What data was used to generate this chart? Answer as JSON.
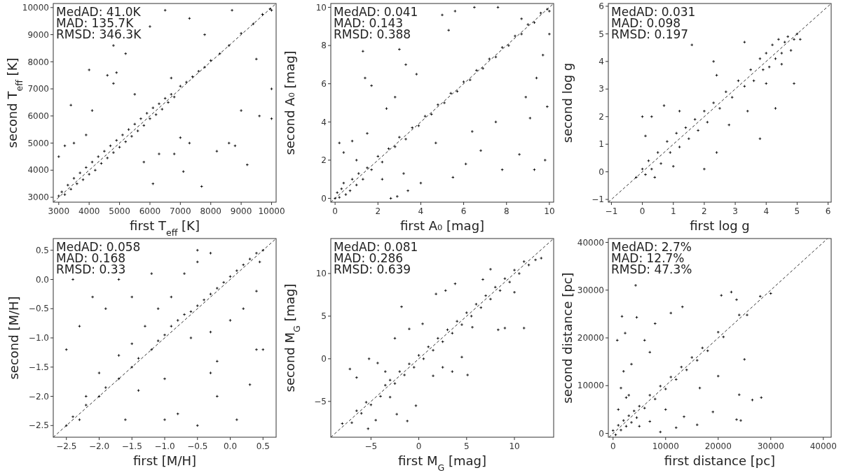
{
  "chart_data": [
    {
      "type": "scatter",
      "xlabel": "first T$_{eff}$ [K]",
      "ylabel": "second T$_{eff}$ [K]",
      "annotations": [
        "MedAD: 41.0K",
        "MAD: 135.7K",
        "RMSD: 346.3K"
      ],
      "xlim": [
        2820,
        10150
      ],
      "ylim": [
        2820,
        10150
      ],
      "xticks": [
        3000,
        4000,
        5000,
        6000,
        7000,
        8000,
        9000,
        10000
      ],
      "yticks": [
        3000,
        4000,
        5000,
        6000,
        7000,
        8000,
        9000,
        10000
      ],
      "series": [
        {
          "type": "scatter",
          "color": "#000000",
          "marker": "cross",
          "x": [
            3000,
            3100,
            3200,
            3300,
            3400,
            3500,
            3600,
            3700,
            3800,
            3900,
            4000,
            4100,
            4200,
            4300,
            4400,
            4500,
            4600,
            4700,
            4800,
            4900,
            5000,
            5100,
            5200,
            5300,
            5400,
            5500,
            5600,
            5700,
            5800,
            5900,
            6000,
            6100,
            6200,
            6300,
            6400,
            6500,
            6600,
            6700,
            6800,
            7000,
            7200,
            7400,
            7600,
            7800,
            8000,
            8300,
            8600,
            9000,
            9400,
            9700,
            9950,
            10000,
            4600,
            4800,
            4900,
            3400,
            4100,
            5200,
            4800,
            4000,
            6000,
            6500,
            7300,
            8700,
            7000,
            7300,
            6800,
            6100,
            7700,
            7100,
            9200,
            8800,
            9000,
            9600,
            10000,
            10000,
            9500,
            8200,
            8600,
            5800,
            6300,
            3900,
            3500,
            3000,
            3200,
            5500,
            6700,
            7800
          ],
          "values": [
            3050,
            3200,
            3100,
            3450,
            3300,
            3700,
            3500,
            3900,
            3650,
            4100,
            3850,
            4300,
            4000,
            4500,
            4250,
            4700,
            4450,
            4900,
            4650,
            5100,
            4850,
            5300,
            5050,
            5500,
            5250,
            5700,
            5450,
            5900,
            5650,
            6100,
            5900,
            6300,
            6050,
            6450,
            6250,
            6650,
            6500,
            6800,
            6700,
            7100,
            7250,
            7450,
            7650,
            7800,
            8050,
            8300,
            8600,
            9050,
            9400,
            9750,
            9950,
            9900,
            7500,
            7200,
            7600,
            6400,
            6200,
            8300,
            8600,
            7700,
            9300,
            9900,
            9600,
            9900,
            5200,
            5000,
            4600,
            3500,
            3400,
            3950,
            4200,
            4900,
            6200,
            6000,
            5900,
            7000,
            8100,
            4700,
            5000,
            4300,
            4600,
            5300,
            5000,
            4500,
            4900,
            6800,
            7400,
            9000
          ]
        },
        {
          "type": "line",
          "color": "#000000",
          "line_style": "dashed",
          "x": [
            2820,
            10150
          ],
          "values": [
            2820,
            10150
          ]
        }
      ]
    },
    {
      "type": "scatter",
      "xlabel": "first A₀ [mag]",
      "ylabel": "second A₀ [mag]",
      "annotations": [
        "MedAD: 0.041",
        "MAD: 0.143",
        "RMSD: 0.388"
      ],
      "xlim": [
        -0.2,
        10.2
      ],
      "ylim": [
        -0.2,
        10.2
      ],
      "xticks": [
        0,
        2,
        4,
        6,
        8,
        10
      ],
      "yticks": [
        0,
        2,
        4,
        6,
        8,
        10
      ],
      "series": [
        {
          "type": "scatter",
          "color": "#000000",
          "marker": "cross",
          "x": [
            0,
            0.1,
            0.2,
            0.3,
            0.5,
            0.4,
            0.7,
            0.8,
            1.0,
            1.1,
            1.3,
            1.5,
            1.7,
            2.0,
            2.2,
            2.5,
            2.8,
            3.0,
            3.3,
            3.6,
            3.9,
            4.2,
            4.5,
            4.8,
            5.1,
            5.4,
            5.7,
            6.0,
            6.3,
            6.6,
            6.9,
            7.2,
            7.5,
            7.8,
            8.1,
            8.4,
            8.7,
            9.0,
            9.3,
            9.6,
            9.9,
            10,
            0.2,
            0.4,
            0.8,
            1.3,
            1.4,
            1.7,
            1.5,
            2.4,
            3.0,
            3.3,
            3.8,
            2.8,
            5.0,
            5.6,
            6.5,
            5.3,
            3.4,
            2.6,
            2.9,
            4.0,
            5.5,
            6.1,
            6.8,
            7.8,
            8.6,
            9.3,
            9.8,
            9.9,
            9.4,
            9.1,
            8.9,
            7.5,
            6.4,
            4.7,
            9.7,
            10,
            7.6,
            8.7,
            2.2,
            3.2,
            1.0
          ],
          "values": [
            0,
            0.3,
            0.05,
            0.5,
            0.2,
            0.8,
            0.4,
            1.0,
            0.7,
            1.3,
            1.0,
            1.6,
            1.5,
            2.2,
            1.9,
            2.6,
            2.7,
            3.2,
            3.1,
            3.7,
            3.8,
            4.3,
            4.4,
            4.9,
            5.0,
            5.5,
            5.6,
            6.1,
            6.2,
            6.7,
            6.8,
            7.3,
            7.4,
            7.9,
            8.0,
            8.5,
            8.6,
            9.1,
            9.2,
            9.7,
            9.9,
            9.8,
            2.9,
            2.4,
            3.0,
            7.7,
            6.3,
            5.9,
            3.4,
            4.7,
            7.8,
            7.0,
            6.5,
            5.3,
            9.6,
            9.8,
            10,
            8.8,
            0.4,
            0.0,
            0.1,
            0.8,
            1.1,
            1.8,
            2.5,
            1.5,
            2.3,
            1.5,
            2.0,
            4.8,
            6.3,
            4.2,
            5.3,
            4.0,
            3.5,
            2.9,
            7.5,
            8.6,
            10,
            9.4,
            1.0,
            1.3,
            2.0
          ]
        },
        {
          "type": "line",
          "color": "#000000",
          "line_style": "dashed",
          "x": [
            -0.2,
            10.2
          ],
          "values": [
            -0.2,
            10.2
          ]
        }
      ]
    },
    {
      "type": "scatter",
      "xlabel": "first log g",
      "ylabel": "second log g",
      "annotations": [
        "MedAD: 0.031",
        "MAD: 0.098",
        "RMSD: 0.197"
      ],
      "xlim": [
        -1.1,
        6.1
      ],
      "ylim": [
        -1.1,
        6.1
      ],
      "xticks": [
        {
          "value": -1,
          "label": "−1"
        },
        0,
        1,
        2,
        3,
        4,
        5,
        6
      ],
      "yticks": [
        {
          "value": -1,
          "label": "−1"
        },
        0,
        1,
        2,
        3,
        4,
        5,
        6
      ],
      "series": [
        {
          "type": "scatter",
          "color": "#000000",
          "marker": "cross",
          "x": [
            -0.2,
            0,
            0.1,
            0.2,
            0.3,
            0.5,
            0.6,
            0.8,
            0.9,
            1.1,
            1.2,
            1.4,
            1.5,
            1.7,
            1.8,
            2.0,
            2.1,
            2.3,
            2.5,
            2.7,
            2.9,
            3.1,
            3.3,
            3.5,
            3.6,
            3.8,
            3.9,
            4.0,
            4.1,
            4.2,
            4.3,
            4.4,
            4.5,
            4.6,
            4.7,
            4.8,
            4.9,
            5.0,
            5.1,
            4.5,
            4.0,
            0,
            0.3,
            0.7,
            0.1,
            1.6,
            2.3,
            3.3,
            2.4,
            3.8,
            2.0,
            2.4,
            3.4,
            4.3,
            4.9,
            1.0,
            0.4,
            2.8,
            1.2
          ],
          "values": [
            -0.2,
            0.1,
            -0.1,
            0.4,
            0.1,
            0.7,
            0.3,
            1.1,
            0.7,
            1.4,
            0.9,
            1.6,
            1.2,
            1.9,
            1.5,
            2.2,
            1.8,
            2.5,
            2.3,
            2.9,
            2.7,
            3.3,
            3.1,
            3.7,
            3.3,
            4.1,
            3.7,
            4.3,
            3.8,
            4.6,
            4.1,
            4.8,
            4.3,
            4.7,
            4.9,
            4.4,
            4.8,
            5.0,
            4.8,
            3.9,
            3.2,
            2.0,
            2.0,
            2.4,
            1.3,
            4.6,
            4.0,
            4.7,
            3.5,
            1.2,
            0.1,
            0.7,
            2.2,
            2.3,
            3.2,
            0.2,
            -0.2,
            1.7,
            2.2
          ]
        },
        {
          "type": "line",
          "color": "#000000",
          "line_style": "dashed",
          "x": [
            -1.1,
            6.1
          ],
          "values": [
            -1.1,
            6.1
          ]
        }
      ]
    },
    {
      "type": "scatter",
      "xlabel": "first [M/H]",
      "ylabel": "second [M/H]",
      "annotations": [
        "MedAD: 0.058",
        "MAD: 0.168",
        "RMSD: 0.33"
      ],
      "xlim": [
        -2.7,
        0.7
      ],
      "ylim": [
        -2.7,
        0.7
      ],
      "xticks": [
        {
          "value": -2.5,
          "label": "−2.5"
        },
        {
          "value": -2,
          "label": "−2.0"
        },
        {
          "value": -1.5,
          "label": "−1.5"
        },
        {
          "value": -1,
          "label": "−1.0"
        },
        {
          "value": -0.5,
          "label": "−0.5"
        },
        {
          "value": 0,
          "label": "0.0"
        },
        0.5
      ],
      "yticks": [
        {
          "value": -2.5,
          "label": "−2.5"
        },
        {
          "value": -2,
          "label": "−2.0"
        },
        {
          "value": -1.5,
          "label": "−1.5"
        },
        {
          "value": -1,
          "label": "−1.0"
        },
        {
          "value": -0.5,
          "label": "−0.5"
        },
        {
          "value": 0,
          "label": "0.0"
        },
        0.5
      ],
      "series": [
        {
          "type": "scatter",
          "color": "#000000",
          "marker": "cross",
          "x": [
            -2.5,
            -2.4,
            -2.3,
            -2.2,
            -2.0,
            -1.9,
            -1.7,
            -1.5,
            -1.4,
            -1.2,
            -1.1,
            -1.0,
            -0.9,
            -0.8,
            -0.7,
            -0.6,
            -0.5,
            -0.4,
            -0.3,
            -0.2,
            -0.1,
            0,
            0.1,
            0.2,
            0.3,
            0.4,
            0.5,
            0.45,
            -0.9,
            -0.7,
            -0.5,
            -0.3,
            -0.6,
            -0.3,
            0,
            0.2,
            0.4,
            -0.2,
            -1.1,
            -1.3,
            -1.5,
            -1.7,
            -1.4,
            -1.0,
            -2.4,
            -2.1,
            -1.9,
            -2.5,
            -2.3,
            -2.0,
            -1.7,
            -1.2,
            -1.5,
            -0.5,
            -0.8,
            -0.5,
            -0.2,
            0.1,
            0.3,
            0.5,
            0.4,
            -1.0,
            -1.6,
            -2.2,
            -0.3
          ],
          "values": [
            -2.5,
            -2.35,
            -2.4,
            -2.15,
            -2.0,
            -1.85,
            -1.7,
            -1.5,
            -1.35,
            -1.2,
            -1.05,
            -0.95,
            -0.8,
            -0.7,
            -0.6,
            -0.55,
            -0.45,
            -0.35,
            -0.25,
            -0.15,
            -0.05,
            0.05,
            0.15,
            0.25,
            0.35,
            0.45,
            0.5,
            0.3,
            -0.3,
            0.1,
            0.3,
            0.45,
            -1.0,
            -0.9,
            -0.7,
            -0.5,
            -1.2,
            -1.4,
            -0.5,
            -0.8,
            -1.1,
            -1.3,
            -1.9,
            -1.7,
            0,
            -0.3,
            -0.5,
            -1.2,
            -0.8,
            -1.6,
            0.0,
            0.1,
            -0.3,
            0.5,
            -2.3,
            -2.5,
            -2.0,
            -2.4,
            -1.8,
            -1.2,
            -0.2,
            -2.4,
            -2.4,
            -2.0,
            -1.6
          ]
        },
        {
          "type": "line",
          "color": "#000000",
          "line_style": "dashed",
          "x": [
            -2.7,
            0.7
          ],
          "values": [
            -2.7,
            0.7
          ]
        }
      ]
    },
    {
      "type": "scatter",
      "xlabel": "first M$_{G}$ [mag]",
      "ylabel": "second M$_{G}$ [mag]",
      "annotations": [
        "MedAD: 0.081",
        "MAD: 0.286",
        "RMSD: 0.639"
      ],
      "xlim": [
        -9.2,
        14.1
      ],
      "ylim": [
        -9.2,
        14.1
      ],
      "xticks": [
        {
          "value": -5,
          "label": "−5"
        },
        0,
        5,
        10
      ],
      "yticks": [
        {
          "value": -5,
          "label": "−5"
        },
        0,
        5,
        10
      ],
      "series": [
        {
          "type": "scatter",
          "color": "#000000",
          "marker": "cross",
          "x": [
            -8,
            -7,
            -6.5,
            -6,
            -5.5,
            -5,
            -4,
            -3.5,
            -3,
            -2.5,
            -2,
            -1.5,
            -1,
            -0.5,
            0,
            0.5,
            1,
            1.5,
            2,
            2.5,
            3,
            3.5,
            4,
            4.5,
            5,
            5.5,
            6,
            6.5,
            7,
            7.5,
            8,
            8.5,
            9,
            9.5,
            10,
            10.5,
            11,
            11.5,
            12.2,
            -7.2,
            -6.5,
            -5.2,
            -4.3,
            -3.5,
            -2.5,
            -1.8,
            -1.0,
            0.4,
            1.8,
            2.8,
            3.8,
            6.7,
            5.6,
            8.3,
            9.0,
            11,
            5.1,
            3.5,
            4.5,
            -0.3,
            -1.2,
            -2.3,
            -4.5,
            -5.3,
            -3.0,
            1.5,
            2.5,
            7.5,
            10,
            12.8
          ],
          "values": [
            -7.6,
            -7.5,
            -6.1,
            -6.4,
            -5.1,
            -5.4,
            -4.4,
            -3.1,
            -2.5,
            -2.9,
            -1.5,
            -1.9,
            -0.6,
            -1.0,
            0.4,
            0,
            1.4,
            1.0,
            2.4,
            2.0,
            3.4,
            3.0,
            4.4,
            4.0,
            5.4,
            5.0,
            6.4,
            6.0,
            7.4,
            7.0,
            8.4,
            8.0,
            9.4,
            9.0,
            10.4,
            10.0,
            11.4,
            11.0,
            11.6,
            -1.2,
            -2.2,
            0,
            -0.5,
            -1.5,
            2.4,
            6.1,
            3.5,
            4.1,
            7.6,
            8.0,
            8.8,
            9.3,
            3.7,
            3.4,
            3.6,
            3.6,
            -1.9,
            -1.5,
            0.2,
            -5.5,
            -7.3,
            -6.5,
            -7.2,
            -8.2,
            -4.5,
            -2.0,
            -1.0,
            10.5,
            7.8,
            11.8
          ]
        },
        {
          "type": "line",
          "color": "#000000",
          "line_style": "dashed",
          "x": [
            -9.2,
            14.1
          ],
          "values": [
            -9.2,
            14.1
          ]
        }
      ]
    },
    {
      "type": "scatter",
      "xlabel": "first distance [pc]",
      "ylabel": "second distance [pc]",
      "annotations": [
        "MedAD: 2.7%",
        "MAD: 12.7%",
        "RMSD: 47.3%"
      ],
      "xlim": [
        -900,
        41500
      ],
      "ylim": [
        -800,
        40800
      ],
      "xticks": [
        0,
        10000,
        20000,
        30000,
        40000
      ],
      "yticks": [
        0,
        10000,
        20000,
        30000,
        40000
      ],
      "series": [
        {
          "type": "scatter",
          "color": "#000000",
          "marker": "cross",
          "x": [
            0,
            500,
            1000,
            1500,
            2000,
            2500,
            3000,
            3500,
            4000,
            4500,
            5000,
            6000,
            7000,
            8000,
            9000,
            10000,
            11000,
            12000,
            13000,
            14000,
            15000,
            16000,
            17000,
            18000,
            20000,
            21000,
            24000,
            25500,
            28000,
            30000,
            1000,
            1500,
            2000,
            2500,
            3500,
            1700,
            2300,
            4300,
            4500,
            800,
            6000,
            7000,
            11000,
            13200,
            20600,
            22500,
            23500,
            5000,
            7000,
            9000,
            12000,
            13500,
            16000,
            19000,
            23500,
            24300,
            24000,
            26500,
            28200,
            25000,
            20000,
            16500,
            10000,
            3000,
            8000
          ],
          "values": [
            600,
            -300,
            1700,
            700,
            2700,
            1500,
            3700,
            2300,
            4700,
            3300,
            5700,
            5300,
            8000,
            7200,
            9900,
            9300,
            11800,
            11300,
            13900,
            13300,
            15900,
            15300,
            17900,
            17300,
            21200,
            20200,
            24800,
            24800,
            28700,
            29300,
            5000,
            9500,
            13000,
            7500,
            14500,
            24500,
            21000,
            31000,
            24300,
            19500,
            19500,
            17000,
            25200,
            26500,
            28900,
            29600,
            28000,
            1500,
            2500,
            300,
            1200,
            3500,
            1800,
            4500,
            2900,
            2700,
            8100,
            7000,
            7500,
            15500,
            12000,
            9500,
            5000,
            8000,
            23000
          ]
        },
        {
          "type": "line",
          "color": "#000000",
          "line_style": "dashed",
          "x": [
            -800,
            40800
          ],
          "values": [
            -800,
            40800
          ]
        }
      ]
    }
  ]
}
